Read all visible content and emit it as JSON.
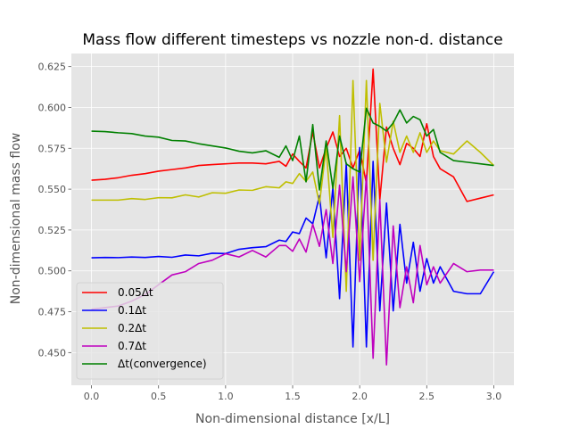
{
  "chart_data": {
    "type": "line",
    "title": "Mass flow different timesteps vs nozzle non-d. distance",
    "xlabel": "Non-dimensional distance [x/L]",
    "ylabel": "Non-dimensional mass flow",
    "xlim": [
      -0.15,
      3.15
    ],
    "ylim": [
      0.43,
      0.633
    ],
    "xticks": [
      0.0,
      0.5,
      1.0,
      1.5,
      2.0,
      2.5,
      3.0
    ],
    "xtick_labels": [
      "0.0",
      "0.5",
      "1.0",
      "1.5",
      "2.0",
      "2.5",
      "3.0"
    ],
    "yticks": [
      0.45,
      0.475,
      0.5,
      0.525,
      0.55,
      0.575,
      0.6,
      0.625
    ],
    "ytick_labels": [
      "0.450",
      "0.475",
      "0.500",
      "0.525",
      "0.550",
      "0.575",
      "0.600",
      "0.625"
    ],
    "grid": true,
    "legend_position": "lower-left",
    "style": "ggplot",
    "series": [
      {
        "name": "0.05Δt",
        "color": "#ff0000",
        "x": [
          0.0,
          0.1,
          0.2,
          0.3,
          0.4,
          0.5,
          0.6,
          0.7,
          0.8,
          0.9,
          1.0,
          1.1,
          1.2,
          1.3,
          1.4,
          1.45,
          1.5,
          1.55,
          1.6,
          1.65,
          1.7,
          1.75,
          1.8,
          1.85,
          1.9,
          1.95,
          2.0,
          2.05,
          2.1,
          2.15,
          2.2,
          2.25,
          2.3,
          2.35,
          2.4,
          2.45,
          2.5,
          2.55,
          2.6,
          2.7,
          2.8,
          2.9,
          3.0
        ],
        "y": [
          0.5555,
          0.556,
          0.557,
          0.5585,
          0.5595,
          0.561,
          0.562,
          0.563,
          0.5645,
          0.565,
          0.5655,
          0.566,
          0.566,
          0.5655,
          0.567,
          0.564,
          0.5715,
          0.567,
          0.563,
          0.585,
          0.563,
          0.575,
          0.585,
          0.57,
          0.575,
          0.563,
          0.574,
          0.5535,
          0.6235,
          0.5435,
          0.588,
          0.575,
          0.565,
          0.578,
          0.575,
          0.57,
          0.59,
          0.57,
          0.5625,
          0.5575,
          0.5425,
          0.5445,
          0.5465
        ]
      },
      {
        "name": "0.1Δt",
        "color": "#0000ff",
        "x": [
          0.0,
          0.1,
          0.2,
          0.3,
          0.4,
          0.5,
          0.6,
          0.7,
          0.8,
          0.9,
          1.0,
          1.1,
          1.2,
          1.3,
          1.4,
          1.45,
          1.5,
          1.55,
          1.6,
          1.65,
          1.7,
          1.75,
          1.8,
          1.85,
          1.9,
          1.95,
          2.0,
          2.05,
          2.1,
          2.15,
          2.2,
          2.25,
          2.3,
          2.35,
          2.4,
          2.45,
          2.5,
          2.55,
          2.6,
          2.7,
          2.8,
          2.9,
          3.0
        ],
        "y": [
          0.508,
          0.5082,
          0.5081,
          0.5085,
          0.5082,
          0.5088,
          0.5083,
          0.5097,
          0.5092,
          0.5108,
          0.5106,
          0.5132,
          0.5142,
          0.5148,
          0.5188,
          0.518,
          0.5238,
          0.5228,
          0.5323,
          0.5288,
          0.546,
          0.508,
          0.551,
          0.483,
          0.566,
          0.4535,
          0.5755,
          0.4535,
          0.567,
          0.4755,
          0.5415,
          0.4755,
          0.5285,
          0.4925,
          0.5175,
          0.4875,
          0.5075,
          0.4925,
          0.5025,
          0.4875,
          0.486,
          0.486,
          0.4995
        ]
      },
      {
        "name": "0.2Δt",
        "color": "#bfbf00",
        "x": [
          0.0,
          0.1,
          0.2,
          0.3,
          0.4,
          0.5,
          0.6,
          0.7,
          0.8,
          0.9,
          1.0,
          1.1,
          1.2,
          1.3,
          1.4,
          1.45,
          1.5,
          1.55,
          1.6,
          1.65,
          1.7,
          1.75,
          1.8,
          1.85,
          1.9,
          1.95,
          2.0,
          2.05,
          2.1,
          2.15,
          2.2,
          2.25,
          2.3,
          2.35,
          2.4,
          2.45,
          2.5,
          2.55,
          2.6,
          2.7,
          2.8,
          2.9,
          3.0
        ],
        "y": [
          0.5433,
          0.5433,
          0.5433,
          0.5442,
          0.5437,
          0.5448,
          0.5447,
          0.5465,
          0.5452,
          0.5478,
          0.5475,
          0.5495,
          0.5493,
          0.5515,
          0.5508,
          0.5545,
          0.5535,
          0.5595,
          0.5548,
          0.5605,
          0.541,
          0.5755,
          0.5205,
          0.595,
          0.4875,
          0.6165,
          0.5065,
          0.6165,
          0.5065,
          0.6025,
          0.5665,
          0.5915,
          0.5725,
          0.5825,
          0.5725,
          0.5845,
          0.5725,
          0.5795,
          0.5735,
          0.5715,
          0.5795,
          0.5725,
          0.5645
        ]
      },
      {
        "name": "0.7Δt",
        "color": "#bf00bf",
        "x": [
          0.0,
          0.1,
          0.2,
          0.3,
          0.4,
          0.5,
          0.6,
          0.7,
          0.8,
          0.9,
          1.0,
          1.1,
          1.2,
          1.3,
          1.4,
          1.45,
          1.5,
          1.55,
          1.6,
          1.65,
          1.7,
          1.75,
          1.8,
          1.85,
          1.9,
          1.95,
          2.0,
          2.05,
          2.1,
          2.15,
          2.2,
          2.25,
          2.3,
          2.35,
          2.4,
          2.45,
          2.5,
          2.55,
          2.6,
          2.7,
          2.8,
          2.9,
          3.0
        ],
        "y": [
          0.4765,
          0.4775,
          0.4785,
          0.4815,
          0.4855,
          0.4915,
          0.4975,
          0.4995,
          0.5045,
          0.5065,
          0.5105,
          0.5085,
          0.5125,
          0.5085,
          0.5155,
          0.5155,
          0.512,
          0.5195,
          0.5115,
          0.5285,
          0.515,
          0.5375,
          0.5045,
          0.5525,
          0.4995,
          0.5575,
          0.4935,
          0.5585,
          0.4465,
          0.5435,
          0.4425,
          0.5275,
          0.4775,
          0.5025,
          0.4805,
          0.5155,
          0.4915,
          0.5025,
          0.4925,
          0.5045,
          0.4995,
          0.5005,
          0.5005
        ]
      },
      {
        "name": "Δt(convergence)",
        "color": "#008000",
        "x": [
          0.0,
          0.1,
          0.2,
          0.3,
          0.4,
          0.5,
          0.6,
          0.7,
          0.8,
          0.9,
          1.0,
          1.1,
          1.2,
          1.3,
          1.4,
          1.45,
          1.5,
          1.55,
          1.6,
          1.65,
          1.7,
          1.75,
          1.8,
          1.85,
          1.9,
          1.95,
          2.0,
          2.05,
          2.1,
          2.15,
          2.2,
          2.25,
          2.3,
          2.35,
          2.4,
          2.45,
          2.5,
          2.55,
          2.6,
          2.7,
          2.8,
          2.9,
          3.0
        ],
        "y": [
          0.5855,
          0.5852,
          0.5845,
          0.584,
          0.5825,
          0.5818,
          0.5798,
          0.5795,
          0.5778,
          0.5765,
          0.5752,
          0.5732,
          0.5722,
          0.5735,
          0.5695,
          0.5765,
          0.5675,
          0.5825,
          0.5545,
          0.5895,
          0.5495,
          0.5795,
          0.5505,
          0.5825,
          0.5655,
          0.5625,
          0.5605,
          0.5995,
          0.5905,
          0.5885,
          0.5855,
          0.5905,
          0.5985,
          0.5905,
          0.5945,
          0.5925,
          0.5825,
          0.5865,
          0.5725,
          0.5675,
          0.5665,
          0.5655,
          0.5645
        ]
      }
    ]
  }
}
